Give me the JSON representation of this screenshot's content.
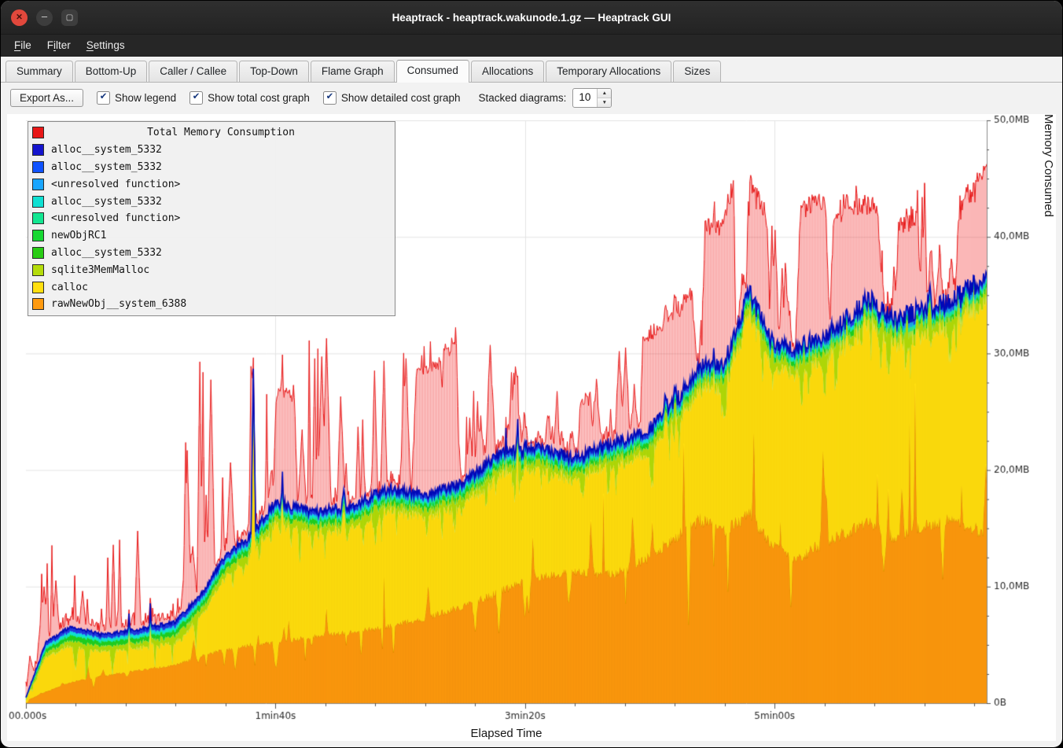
{
  "window": {
    "title": "Heaptrack - heaptrack.wakunode.1.gz — Heaptrack GUI"
  },
  "menubar": {
    "items": [
      {
        "label": "File",
        "mnemonic": 0
      },
      {
        "label": "Filter",
        "mnemonic": 1
      },
      {
        "label": "Settings",
        "mnemonic": 0
      }
    ]
  },
  "tabs": {
    "items": [
      "Summary",
      "Bottom-Up",
      "Caller / Callee",
      "Top-Down",
      "Flame Graph",
      "Consumed",
      "Allocations",
      "Temporary Allocations",
      "Sizes"
    ],
    "active": "Consumed"
  },
  "toolbar": {
    "export_button": "Export As...",
    "checkboxes": [
      {
        "label": "Show legend",
        "checked": true
      },
      {
        "label": "Show total cost graph",
        "checked": true
      },
      {
        "label": "Show detailed cost graph",
        "checked": true
      }
    ],
    "stacked_label": "Stacked diagrams:",
    "stacked_value": "10",
    "spin_up": "▲",
    "spin_down": "▼",
    "check_glyph": "✔"
  },
  "axes": {
    "x_label": "Elapsed Time",
    "y_label": "Memory Consumed",
    "x_ticks": [
      "00.000s",
      "1min40s",
      "3min20s",
      "5min00s"
    ],
    "y_ticks": [
      "0B",
      "10,0MB",
      "20,0MB",
      "30,0MB",
      "40,0MB",
      "50,0MB"
    ]
  },
  "legend": {
    "title": "Total Memory Consumption",
    "title_color": "#e81717",
    "entries": [
      {
        "label": "alloc__system_5332",
        "color": "#1414cd"
      },
      {
        "label": "alloc__system_5332",
        "color": "#0f52ff"
      },
      {
        "label": "<unresolved function>",
        "color": "#18a5ff"
      },
      {
        "label": "alloc__system_5332",
        "color": "#0fe0d2"
      },
      {
        "label": "<unresolved function>",
        "color": "#12e691"
      },
      {
        "label": "newObjRC1",
        "color": "#16d832"
      },
      {
        "label": "alloc__system_5332",
        "color": "#28cc14"
      },
      {
        "label": "sqlite3MemMalloc",
        "color": "#b4dc0a"
      },
      {
        "label": "calloc",
        "color": "#ffdf0f"
      },
      {
        "label": "rawNewObj__system_6388",
        "color": "#ff9a0f"
      }
    ]
  },
  "chart_data": {
    "type": "area",
    "title": "Total Memory Consumption",
    "xlabel": "Elapsed Time",
    "ylabel": "Memory Consumed",
    "x_max_s": 385,
    "ylim_mb": [
      0,
      50
    ],
    "x_ticks_s": [
      0,
      100,
      200,
      300
    ],
    "x_tick_labels": [
      "00.000s",
      "1min40s",
      "3min20s",
      "5min00s"
    ],
    "y_ticks_mb": [
      0,
      10,
      20,
      30,
      40,
      50
    ],
    "y_tick_labels": [
      "0B",
      "10,0MB",
      "20,0MB",
      "30,0MB",
      "40,0MB",
      "50,0MB"
    ],
    "keyframes": {
      "times_s": [
        0,
        8,
        18,
        30,
        45,
        60,
        72,
        80,
        90,
        100,
        115,
        130,
        145,
        160,
        175,
        190,
        205,
        220,
        235,
        248,
        260,
        270,
        280,
        290,
        298,
        308,
        318,
        328,
        338,
        348,
        358,
        368,
        378,
        385
      ],
      "rawNewObj_top_mb": [
        0.2,
        1.0,
        1.8,
        2.3,
        2.8,
        3.3,
        4.2,
        4.6,
        5.0,
        5.2,
        5.7,
        6.1,
        6.6,
        7.3,
        8.3,
        9.6,
        10.8,
        11.3,
        11.0,
        12.3,
        14.2,
        15.8,
        14.8,
        16.3,
        13.8,
        12.2,
        13.6,
        14.6,
        15.4,
        14.2,
        15.0,
        15.8,
        15.2,
        14.5
      ],
      "detailed_top_mb": [
        0.5,
        5.2,
        6.6,
        5.9,
        6.3,
        7.0,
        9.8,
        12.8,
        14.3,
        17.3,
        16.4,
        16.9,
        18.4,
        17.9,
        18.9,
        21.4,
        21.9,
        21.0,
        22.4,
        23.2,
        25.8,
        28.8,
        29.3,
        35.3,
        31.2,
        30.4,
        31.3,
        32.8,
        34.8,
        32.8,
        33.8,
        34.3,
        35.8,
        36.2
      ],
      "total_peaks_mb": [
        10,
        12.5,
        16.8,
        13,
        15.5,
        18,
        33,
        24,
        29,
        26.5,
        31.8,
        30.5,
        30,
        31,
        34.8,
        30,
        28,
        26,
        30,
        32.5,
        34,
        46,
        44,
        46.9,
        42,
        40.5,
        44.5,
        44,
        45.8,
        43,
        45,
        44.5,
        46,
        45.5
      ]
    },
    "blue_spikes": [
      {
        "t": 91,
        "peak_mb": 28.7
      }
    ],
    "colors": {
      "red": "#e81717",
      "red_fill": "rgba(255,64,64,0.16)",
      "red_hatch": "rgba(233,30,30,0.42)",
      "blue": "#2038dc",
      "blue_stroke": "#0008b8",
      "lightblue": "#18a5ff",
      "cyan": "#0fe0d2",
      "springgreen": "#12e691",
      "green": "#1ecc1e",
      "yellowgreen": "#b4dc0a",
      "yellowgreen_hatch": "rgba(150,190,0,0.4)",
      "yellow": "#ffdf0f",
      "yellow_hatch": "rgba(226,186,0,0.33)",
      "orange": "#ff9a0f",
      "orange_hatch": "rgba(214,126,0,0.33)",
      "orange_stroke": "#e08800",
      "grid": "#e4e4e4",
      "axis": "#8a8a8a",
      "tick_text": "#2a2a2a"
    }
  }
}
